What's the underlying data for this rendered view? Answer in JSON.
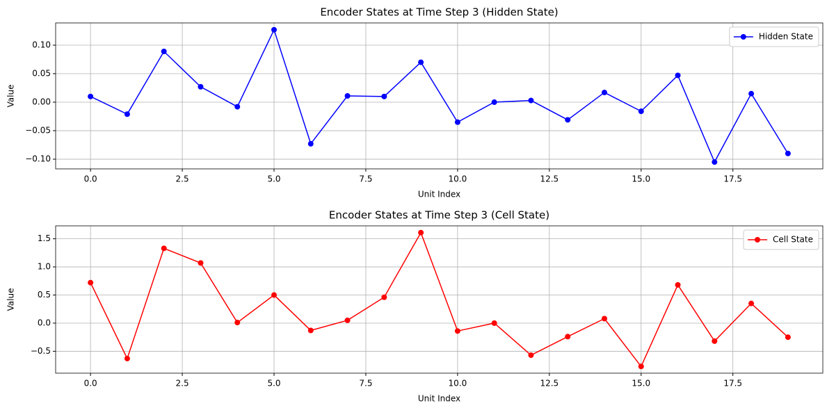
{
  "chart_data": [
    {
      "type": "line",
      "title": "Encoder States at Time Step 3 (Hidden State)",
      "xlabel": "Unit Index",
      "ylabel": "Value",
      "x": [
        0,
        1,
        2,
        3,
        4,
        5,
        6,
        7,
        8,
        9,
        10,
        11,
        12,
        13,
        14,
        15,
        16,
        17,
        18,
        19
      ],
      "series": [
        {
          "name": "Hidden State",
          "color": "#0000ff",
          "values": [
            0.01,
            -0.021,
            0.089,
            0.027,
            -0.008,
            0.127,
            -0.073,
            0.011,
            0.01,
            0.07,
            -0.035,
            0.0,
            0.003,
            -0.031,
            0.017,
            -0.016,
            0.047,
            -0.105,
            0.015,
            -0.09
          ]
        }
      ],
      "xlim": [
        -0.95,
        19.95
      ],
      "xticks": [
        {
          "value": 0,
          "label": "0.0"
        },
        2.5,
        {
          "value": 5,
          "label": "5.0"
        },
        7.5,
        {
          "value": 10,
          "label": "10.0"
        },
        12.5,
        {
          "value": 15,
          "label": "15.0"
        },
        17.5
      ],
      "ylim": [
        -0.117,
        0.139
      ],
      "yticks": [
        {
          "value": -0.1,
          "label": "−0.10"
        },
        {
          "value": -0.05,
          "label": "−0.05"
        },
        {
          "value": 0,
          "label": "0.00"
        },
        {
          "value": 0.05,
          "label": "0.05"
        },
        {
          "value": 0.1,
          "label": "0.10"
        }
      ],
      "grid": true,
      "legend": "upper right"
    },
    {
      "type": "line",
      "title": "Encoder States at Time Step 3 (Cell State)",
      "xlabel": "Unit Index",
      "ylabel": "Value",
      "x": [
        0,
        1,
        2,
        3,
        4,
        5,
        6,
        7,
        8,
        9,
        10,
        11,
        12,
        13,
        14,
        15,
        16,
        17,
        18,
        19
      ],
      "series": [
        {
          "name": "Cell State",
          "color": "#ff0000",
          "values": [
            0.72,
            -0.63,
            1.33,
            1.07,
            0.01,
            0.5,
            -0.13,
            0.05,
            0.46,
            1.61,
            -0.14,
            0.0,
            -0.57,
            -0.24,
            0.08,
            -0.77,
            0.68,
            -0.32,
            0.35,
            -0.25
          ]
        }
      ],
      "xlim": [
        -0.95,
        19.95
      ],
      "xticks": [
        {
          "value": 0,
          "label": "0.0"
        },
        2.5,
        {
          "value": 5,
          "label": "5.0"
        },
        7.5,
        {
          "value": 10,
          "label": "10.0"
        },
        12.5,
        {
          "value": 15,
          "label": "15.0"
        },
        17.5
      ],
      "ylim": [
        -0.89,
        1.73
      ],
      "yticks": [
        {
          "value": -0.5,
          "label": "−0.5"
        },
        {
          "value": 0,
          "label": "0.0"
        },
        0.5,
        {
          "value": 1,
          "label": "1.0"
        },
        1.5
      ],
      "grid": true,
      "legend": "upper right"
    }
  ]
}
